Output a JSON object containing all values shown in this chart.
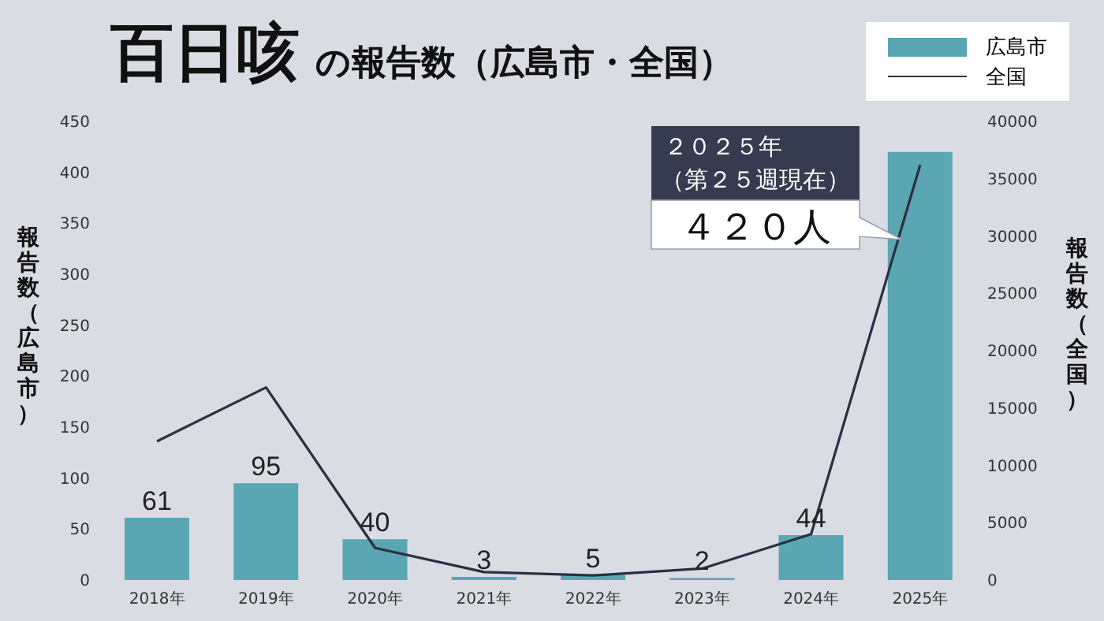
{
  "chart_data": {
    "type": "bar",
    "title": "百日咳",
    "subtitle": "の報告数（広島市・全国）",
    "ylabel": "報告数（広島市）",
    "y2label": "報告数（全国）",
    "categories": [
      "2018年",
      "2019年",
      "2020年",
      "2021年",
      "2022年",
      "2023年",
      "2024年",
      "2025年"
    ],
    "series": [
      {
        "name": "広島市",
        "color": "#5aa6b2",
        "values": [
          61,
          95,
          40,
          3,
          5,
          2,
          44,
          420
        ],
        "value_labels": [
          "61",
          "95",
          "40",
          "3",
          "5",
          "2",
          "44",
          null
        ]
      },
      {
        "name": "全国",
        "type": "line",
        "axis": "y2",
        "color": "#2b3040",
        "values": [
          12100,
          16800,
          2800,
          700,
          400,
          1000,
          4000,
          36200
        ]
      }
    ],
    "ylim": [
      0,
      450
    ],
    "yticks": [
      0,
      50,
      100,
      150,
      200,
      250,
      300,
      350,
      400,
      450
    ],
    "y2lim": [
      0,
      40000
    ],
    "y2ticks": [
      0,
      5000,
      10000,
      15000,
      20000,
      25000,
      30000,
      35000,
      40000
    ],
    "annotations": [
      "２０２５年",
      "（第２５週現在）",
      "４２０人"
    ],
    "legend": "top right",
    "marker": "none"
  }
}
